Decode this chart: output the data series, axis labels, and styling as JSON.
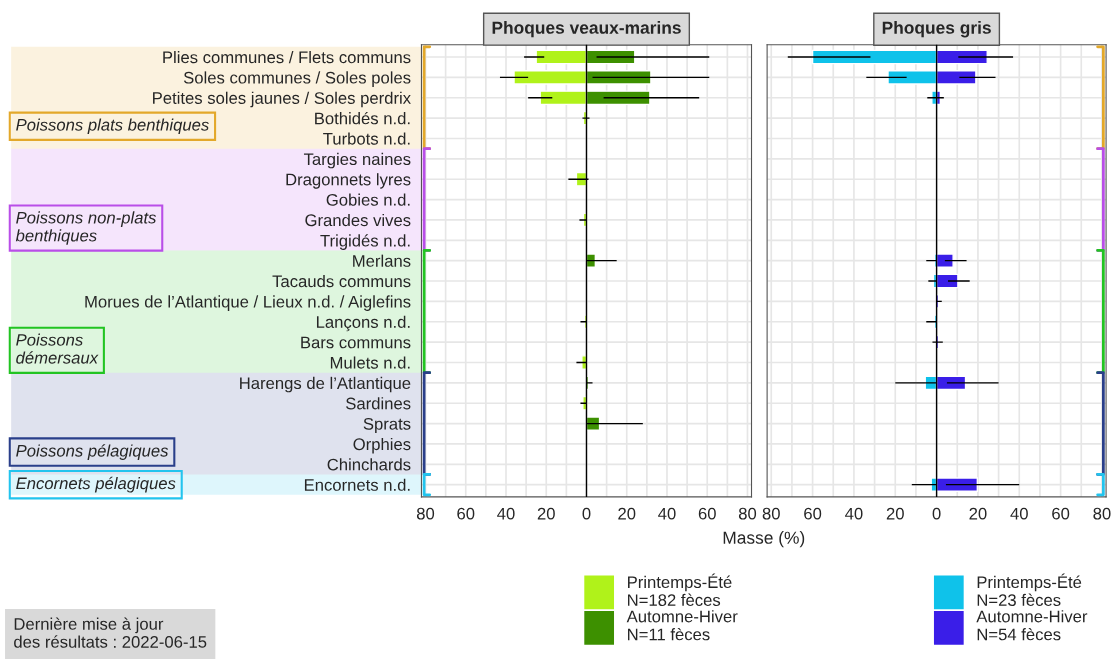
{
  "chart_data": [
    {
      "type": "bar",
      "orientation": "horizontal",
      "title": "Phoques veaux-marins",
      "xlabel": "Masse (%)",
      "categories": [
        "Plies communes / Flets communs",
        "Soles communes / Soles poles",
        "Petites soles jaunes / Soles perdrix",
        "Bothidés n.d.",
        "Turbots n.d.",
        "Targies naines",
        "Dragonnets lyres",
        "Gobies n.d.",
        "Grandes vives",
        "Trigidés n.d.",
        "Merlans",
        "Tacauds communs",
        "Morues de l’Atlantique / Lieux n.d. / Aiglefins",
        "Lançons n.d.",
        "Bars communs",
        "Mulets n.d.",
        "Harengs de l’Atlantique",
        "Sardines",
        "Sprats",
        "Orphies",
        "Chinchards",
        "Encornets n.d."
      ],
      "series": [
        {
          "name": "Printemps-Été\nN=182 fèces",
          "color": "#b0f21a",
          "values": [
            -25,
            -36,
            -23,
            -1.5,
            null,
            null,
            -5,
            null,
            -1.5,
            null,
            null,
            null,
            null,
            -1,
            null,
            -2.3,
            null,
            -1.8,
            null,
            null,
            null,
            null
          ],
          "errors": [
            [
              -31,
              -21
            ],
            [
              -43,
              -29
            ],
            [
              -29,
              -17
            ],
            [
              -2,
              1.5
            ],
            null,
            null,
            [
              -9,
              1
            ],
            null,
            [
              -3.5,
              0
            ],
            null,
            null,
            null,
            null,
            [
              -3,
              0
            ],
            null,
            [
              -5,
              0
            ],
            null,
            [
              -3,
              0
            ],
            null,
            null,
            null,
            null
          ]
        },
        {
          "name": "Automne-Hiver\nN=11 fèces",
          "color": "#3d9000",
          "values": [
            24,
            32,
            31.5,
            null,
            null,
            null,
            null,
            null,
            null,
            null,
            4.4,
            null,
            null,
            null,
            null,
            null,
            1,
            null,
            6.5,
            null,
            null,
            null
          ],
          "errors": [
            [
              5,
              61
            ],
            [
              3,
              61
            ],
            [
              8.5,
              56
            ],
            null,
            null,
            null,
            null,
            null,
            null,
            null,
            [
              0,
              15
            ],
            null,
            null,
            null,
            null,
            null,
            [
              0,
              3
            ],
            null,
            [
              0,
              28
            ],
            null,
            null,
            null
          ]
        }
      ],
      "xlim": [
        -82,
        82
      ],
      "xticks": [
        {
          "value": -80,
          "label": "80"
        },
        {
          "value": -60,
          "label": "60"
        },
        {
          "value": -40,
          "label": "40"
        },
        {
          "value": -20,
          "label": "20"
        },
        0,
        20,
        40,
        60,
        80
      ],
      "grid": true,
      "legend": "bottom",
      "annotations": [
        "Poissons plats benthiques",
        "Poissons non-plats\nbenthiques",
        "Poissons\ndémersaux",
        "Poissons pélagiques",
        "Encornets pélagiques",
        "Dernière mise à jour\ndes résultats : 2022-06-15"
      ]
    },
    {
      "type": "bar",
      "orientation": "horizontal",
      "title": "Phoques gris",
      "categories": [
        null,
        null,
        null,
        null,
        null,
        null,
        null,
        null,
        null,
        null,
        null,
        null,
        null,
        null,
        null,
        null,
        null,
        null,
        null,
        null,
        null,
        null
      ],
      "series": [
        {
          "name": "Printemps-Été\nN=23 fèces",
          "color": "#0fc2ea",
          "values": [
            -60,
            -23.5,
            -2.3,
            null,
            null,
            null,
            null,
            null,
            null,
            null,
            -1,
            -1.5,
            null,
            -1,
            null,
            null,
            -5.5,
            null,
            null,
            null,
            null,
            -2.6
          ],
          "errors": [
            [
              -72,
              -32
            ],
            [
              -34,
              -14.5
            ],
            [
              -4.5,
              0
            ],
            null,
            null,
            null,
            null,
            null,
            null,
            null,
            [
              -5,
              0
            ],
            [
              -4,
              0
            ],
            null,
            [
              -5,
              0
            ],
            null,
            null,
            [
              -20,
              0
            ],
            null,
            null,
            null,
            null,
            [
              -12,
              0
            ]
          ]
        },
        {
          "name": "Automne-Hiver\nN=54 fèces",
          "color": "#3a1ee8",
          "values": [
            24.5,
            19,
            1.8,
            null,
            null,
            null,
            null,
            null,
            null,
            null,
            8,
            10.3,
            1,
            null,
            1,
            null,
            14,
            null,
            null,
            null,
            null,
            19.7
          ],
          "errors": [
            [
              10.5,
              37
            ],
            [
              11,
              28.5
            ],
            [
              0,
              3.5
            ],
            null,
            null,
            null,
            null,
            null,
            null,
            null,
            [
              4,
              14.5
            ],
            [
              5.5,
              16
            ],
            [
              0,
              2.5
            ],
            null,
            [
              -2,
              3
            ],
            null,
            [
              5,
              30
            ],
            null,
            null,
            null,
            null,
            [
              4.5,
              40
            ]
          ]
        }
      ],
      "xlim": [
        -82,
        82
      ],
      "xticks": [
        {
          "value": -80,
          "label": "80"
        },
        {
          "value": -60,
          "label": "60"
        },
        {
          "value": -40,
          "label": "40"
        },
        {
          "value": -20,
          "label": "20"
        },
        0,
        20,
        40,
        60,
        80
      ],
      "grid": true,
      "legend": "bottom"
    }
  ]
}
